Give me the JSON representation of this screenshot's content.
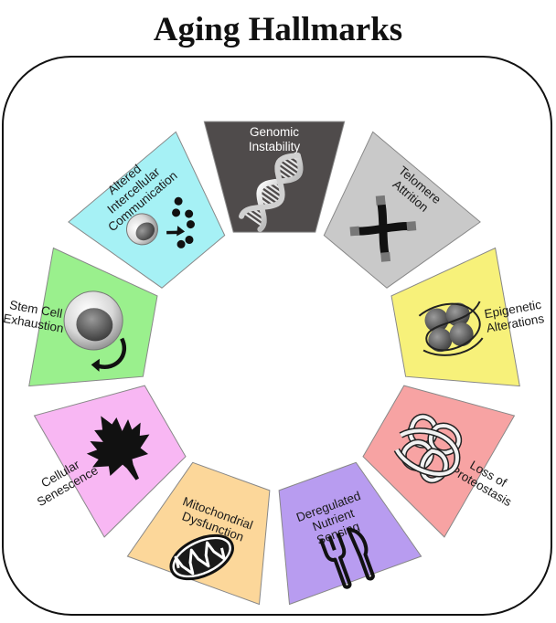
{
  "title": "Aging Hallmarks",
  "hallmarks": [
    {
      "id": "genomic-instability",
      "lines": [
        "Genomic",
        "Instability"
      ],
      "color": "#4f4b4b",
      "icon": "dna-icon"
    },
    {
      "id": "telomere-attrition",
      "lines": [
        "Telomere",
        "Attrition"
      ],
      "color": "#c9c9c9",
      "icon": "chromosome-icon"
    },
    {
      "id": "epigenetic-alterations",
      "lines": [
        "Epigenetic",
        "Alterations"
      ],
      "color": "#f7f17a",
      "icon": "nucleosome-icon"
    },
    {
      "id": "loss-of-proteostasis",
      "lines": [
        "Loss of",
        "Proteostasis"
      ],
      "color": "#f7a3a3",
      "icon": "protein-aggregate-icon"
    },
    {
      "id": "deregulated-nutrient-sensing",
      "lines": [
        "Deregulated",
        "Nutrient",
        "Sensing"
      ],
      "color": "#b89cf0",
      "icon": "fork-knife-icon"
    },
    {
      "id": "mitochondrial-dysfunction",
      "lines": [
        "Mitochondrial",
        "Dysfunction"
      ],
      "color": "#fcd79a",
      "icon": "mitochondrion-icon"
    },
    {
      "id": "cellular-senescence",
      "lines": [
        "Cellular",
        "Senescence"
      ],
      "color": "#f8b7f3",
      "icon": "maple-leaf-icon"
    },
    {
      "id": "stem-cell-exhaustion",
      "lines": [
        "Stem Cell",
        "Exhaustion"
      ],
      "color": "#9af08d",
      "icon": "stem-cell-icon"
    },
    {
      "id": "altered-intercellular-communication",
      "lines": [
        "Altered",
        "Intercellular",
        "Communication"
      ],
      "color": "#a6f1f5",
      "icon": "cell-signaling-icon"
    }
  ]
}
